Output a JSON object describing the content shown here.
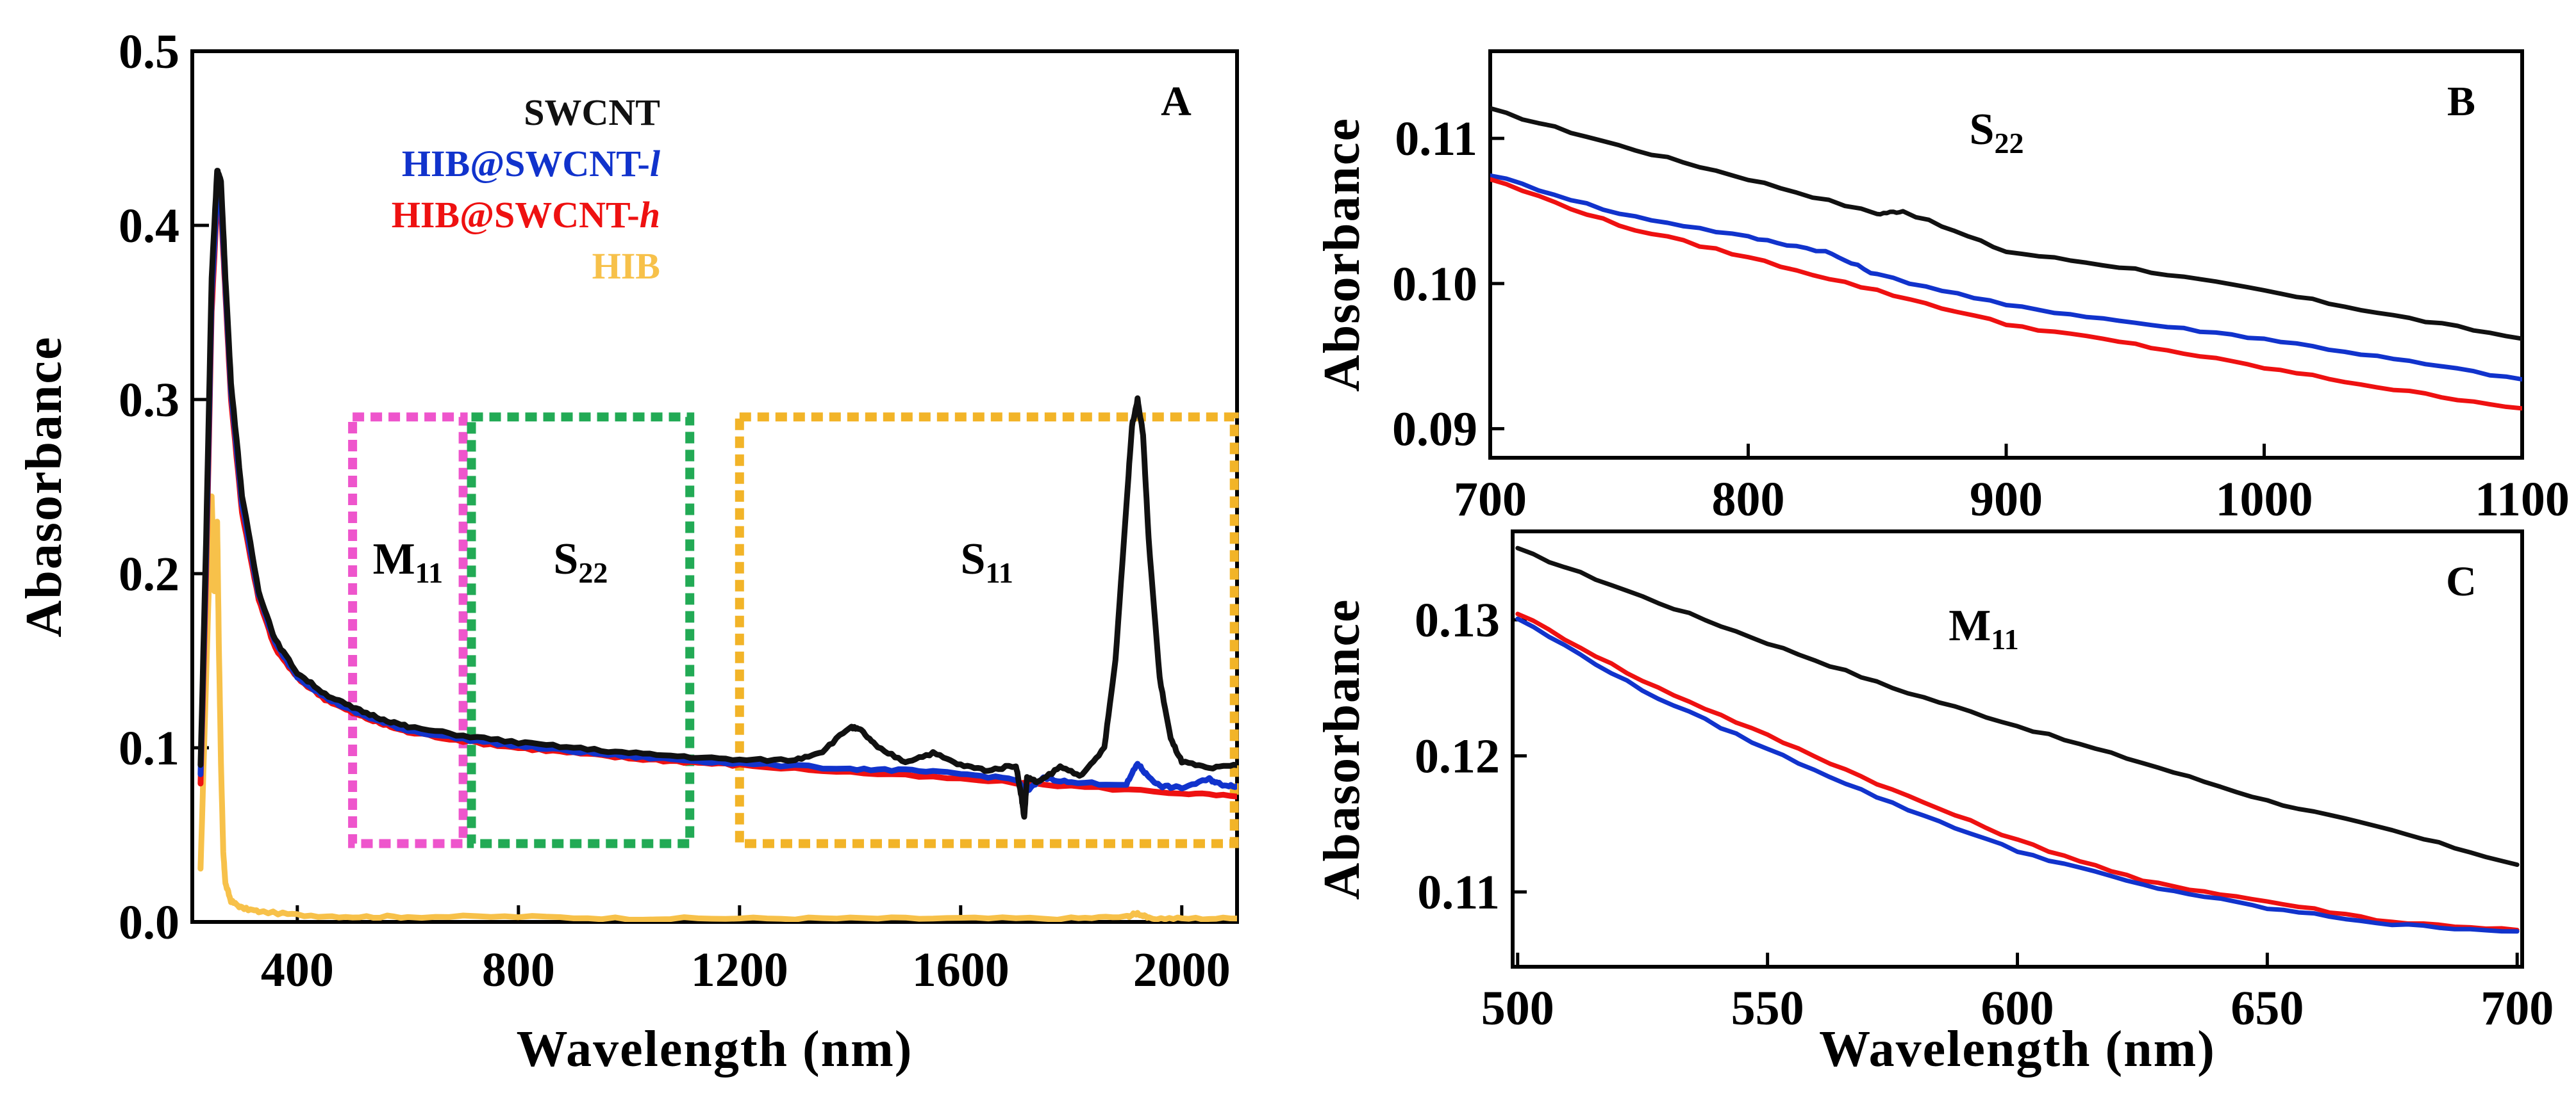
{
  "chart_data": [
    {
      "panel": "A",
      "type": "line",
      "xlabel": "Wavelength (nm)",
      "ylabel": "Abasorbance",
      "xlim": [
        210,
        2100
      ],
      "ylim": [
        0.0,
        0.5
      ],
      "xticks": [
        400,
        800,
        1200,
        1600,
        2000
      ],
      "xtick_labels": [
        "400",
        "800",
        "1200",
        "1600",
        "2000"
      ],
      "yticks": [
        0.0,
        0.1,
        0.2,
        0.3,
        0.4,
        0.5
      ],
      "ytick_labels": [
        "0.0",
        "0.1",
        "0.2",
        "0.3",
        "0.4",
        "0.5"
      ],
      "legend": {
        "location": "top-right"
      },
      "regions": [
        {
          "label_main": "M",
          "label_sub": "11",
          "x_range": [
            500,
            700
          ],
          "y_range": [
            0.045,
            0.29
          ],
          "color": "#ee55cc"
        },
        {
          "label_main": "S",
          "label_sub": "22",
          "x_range": [
            715,
            1110
          ],
          "y_range": [
            0.045,
            0.29
          ],
          "color": "#22aa55"
        },
        {
          "label_main": "S",
          "label_sub": "11",
          "x_range": [
            1200,
            2095
          ],
          "y_range": [
            0.045,
            0.29
          ],
          "color": "#f2b428"
        }
      ],
      "series": [
        {
          "name": "HIB",
          "name_main": "HIB",
          "name_italic": "",
          "color": "#f7c14a",
          "x": [
            225,
            235,
            245,
            250,
            255,
            258,
            262,
            266,
            270,
            280,
            300,
            330,
            400,
            500,
            600,
            800,
            1000,
            1200,
            1400,
            1600,
            1800,
            1900,
            1920,
            1940,
            2000,
            2100
          ],
          "y": [
            0.03,
            0.14,
            0.245,
            0.19,
            0.23,
            0.16,
            0.09,
            0.04,
            0.022,
            0.012,
            0.008,
            0.006,
            0.004,
            0.003,
            0.003,
            0.003,
            0.002,
            0.002,
            0.002,
            0.002,
            0.002,
            0.003,
            0.005,
            0.002,
            0.002,
            0.002
          ]
        },
        {
          "name": "HIB@SWCNT-h",
          "name_main": "HIB@SWCNT-",
          "name_italic": "h",
          "color": "#ee1111",
          "x": [
            225,
            235,
            245,
            255,
            262,
            270,
            280,
            300,
            330,
            360,
            400,
            450,
            500,
            550,
            600,
            700,
            800,
            900,
            1000,
            1100,
            1200,
            1400,
            1600,
            1800,
            2000,
            2100
          ],
          "y": [
            0.08,
            0.2,
            0.35,
            0.415,
            0.41,
            0.36,
            0.3,
            0.235,
            0.185,
            0.157,
            0.14,
            0.128,
            0.12,
            0.114,
            0.109,
            0.104,
            0.1,
            0.097,
            0.094,
            0.092,
            0.09,
            0.086,
            0.082,
            0.078,
            0.074,
            0.072
          ]
        },
        {
          "name": "HIB@SWCNT-l",
          "name_main": "HIB@SWCNT-",
          "name_italic": "l",
          "color": "#1133cc",
          "x": [
            225,
            235,
            245,
            255,
            262,
            270,
            280,
            300,
            330,
            360,
            400,
            450,
            500,
            550,
            600,
            700,
            800,
            900,
            1000,
            1100,
            1200,
            1400,
            1500,
            1600,
            1700,
            1720,
            1750,
            1800,
            1900,
            1920,
            1935,
            1960,
            2000,
            2050,
            2070,
            2100
          ],
          "y": [
            0.085,
            0.21,
            0.36,
            0.42,
            0.415,
            0.365,
            0.305,
            0.24,
            0.188,
            0.16,
            0.141,
            0.129,
            0.121,
            0.115,
            0.11,
            0.105,
            0.101,
            0.098,
            0.095,
            0.093,
            0.091,
            0.088,
            0.087,
            0.085,
            0.082,
            0.075,
            0.083,
            0.08,
            0.079,
            0.091,
            0.085,
            0.078,
            0.077,
            0.082,
            0.079,
            0.078
          ]
        },
        {
          "name": "SWCNT",
          "name_main": "SWCNT",
          "name_italic": "",
          "color": "#111111",
          "x": [
            225,
            235,
            245,
            255,
            262,
            270,
            280,
            300,
            330,
            360,
            400,
            450,
            500,
            550,
            600,
            700,
            800,
            900,
            1000,
            1100,
            1200,
            1300,
            1350,
            1400,
            1420,
            1450,
            1500,
            1550,
            1600,
            1650,
            1700,
            1710,
            1715,
            1720,
            1740,
            1780,
            1820,
            1860,
            1880,
            1900,
            1910,
            1920,
            1930,
            1940,
            1960,
            1980,
            2000,
            2050,
            2100
          ],
          "y": [
            0.09,
            0.22,
            0.37,
            0.432,
            0.425,
            0.37,
            0.31,
            0.245,
            0.19,
            0.162,
            0.143,
            0.131,
            0.123,
            0.117,
            0.112,
            0.107,
            0.103,
            0.1,
            0.097,
            0.095,
            0.093,
            0.093,
            0.098,
            0.112,
            0.11,
            0.1,
            0.092,
            0.097,
            0.09,
            0.087,
            0.09,
            0.072,
            0.06,
            0.083,
            0.08,
            0.089,
            0.084,
            0.1,
            0.15,
            0.24,
            0.285,
            0.3,
            0.28,
            0.22,
            0.14,
            0.105,
            0.092,
            0.088,
            0.09
          ]
        }
      ]
    },
    {
      "panel": "B",
      "type": "line",
      "xlabel": "",
      "ylabel": "Absorbance",
      "xlim": [
        700,
        1100
      ],
      "ylim": [
        0.088,
        0.116
      ],
      "xticks": [
        700,
        800,
        900,
        1000,
        1100
      ],
      "xtick_labels": [
        "700",
        "800",
        "900",
        "1000",
        "1100"
      ],
      "yticks": [
        0.09,
        0.1,
        0.11
      ],
      "ytick_labels": [
        "0.09",
        "0.10",
        "0.11"
      ],
      "annotation_main": "S",
      "annotation_sub": "22",
      "series": [
        {
          "name": "SWCNT",
          "color": "#111111",
          "x": [
            700,
            750,
            800,
            850,
            860,
            900,
            950,
            1000,
            1050,
            1100
          ],
          "y": [
            0.112,
            0.1095,
            0.1072,
            0.1048,
            0.105,
            0.1022,
            0.101,
            0.0995,
            0.0978,
            0.0962
          ]
        },
        {
          "name": "HIB@SWCNT-l",
          "color": "#1133cc",
          "x": [
            700,
            750,
            800,
            830,
            850,
            900,
            950,
            1000,
            1050,
            1100
          ],
          "y": [
            0.1075,
            0.1048,
            0.1032,
            0.1022,
            0.1006,
            0.0985,
            0.0973,
            0.0962,
            0.0948,
            0.0934
          ]
        },
        {
          "name": "HIB@SWCNT-h",
          "color": "#ee1111",
          "x": [
            700,
            750,
            800,
            850,
            900,
            950,
            1000,
            1050,
            1100
          ],
          "y": [
            0.1072,
            0.104,
            0.1018,
            0.0995,
            0.0972,
            0.0958,
            0.0942,
            0.0927,
            0.0914
          ]
        }
      ]
    },
    {
      "panel": "C",
      "type": "line",
      "xlabel": "Wavelength (nm)",
      "ylabel": "Abasorbance",
      "xlim": [
        499,
        701
      ],
      "ylim": [
        0.1045,
        0.1365
      ],
      "xticks": [
        500,
        550,
        600,
        650,
        700
      ],
      "xtick_labels": [
        "500",
        "550",
        "600",
        "650",
        "700"
      ],
      "yticks": [
        0.11,
        0.12,
        0.13
      ],
      "ytick_labels": [
        "0.11",
        "0.12",
        "0.13"
      ],
      "annotation_main": "M",
      "annotation_sub": "11",
      "series": [
        {
          "name": "SWCNT",
          "color": "#111111",
          "x": [
            500,
            525,
            550,
            575,
            600,
            625,
            650,
            675,
            700
          ],
          "y": [
            0.1352,
            0.1317,
            0.1283,
            0.125,
            0.1222,
            0.1195,
            0.1167,
            0.1145,
            0.112
          ]
        },
        {
          "name": "HIB@SWCNT-h",
          "color": "#ee1111",
          "x": [
            500,
            525,
            550,
            575,
            600,
            625,
            650,
            675,
            700
          ],
          "y": [
            0.1305,
            0.1255,
            0.1215,
            0.1175,
            0.1138,
            0.1108,
            0.1093,
            0.1078,
            0.1072
          ]
        },
        {
          "name": "HIB@SWCNT-l",
          "color": "#1133cc",
          "x": [
            500,
            525,
            550,
            575,
            600,
            625,
            650,
            675,
            700
          ],
          "y": [
            0.1301,
            0.1248,
            0.1205,
            0.1165,
            0.113,
            0.1105,
            0.1088,
            0.1076,
            0.1071
          ]
        }
      ]
    }
  ]
}
